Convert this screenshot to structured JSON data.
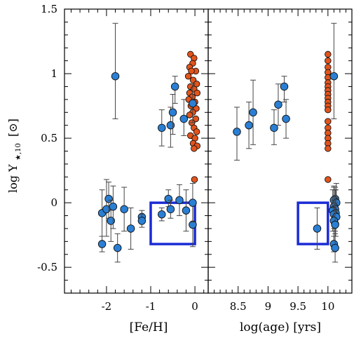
{
  "chart_data": {
    "type": "scatter",
    "ylabel": "log Υ",
    "ylabel_sub": "★,10",
    "ylabel_unit": "[⊙]",
    "ylim": [
      -0.7,
      1.5
    ],
    "yticks": [
      -0.5,
      0,
      0.5,
      1,
      1.5
    ],
    "ytick_labels": [
      "-0.5",
      "0",
      "0.5",
      "1",
      "1.5"
    ],
    "colors": {
      "blue": "#2a7fd4",
      "red": "#e2541c",
      "box": "#1a2bd6",
      "axis": "#000000"
    },
    "panels": [
      {
        "xlabel": "[Fe/H]",
        "xlim": [
          -2.95,
          0.3
        ],
        "xticks": [
          -2,
          -1,
          0
        ],
        "xtick_labels": [
          "-2",
          "-1",
          "0"
        ],
        "box": {
          "x": [
            -1.0,
            0.0
          ],
          "y": [
            -0.32,
            0.0
          ]
        },
        "series": [
          {
            "color": "blue",
            "points": [
              {
                "x": -1.8,
                "y": 0.98,
                "lo": 0.65,
                "hi": 1.39
              },
              {
                "x": -2.1,
                "y": -0.32,
                "lo": -0.38,
                "hi": -0.26
              },
              {
                "x": -2.1,
                "y": -0.08,
                "lo": -0.26,
                "hi": 0.1
              },
              {
                "x": -2.0,
                "y": -0.05,
                "lo": -0.26,
                "hi": 0.18
              },
              {
                "x": -1.95,
                "y": 0.03,
                "lo": -0.12,
                "hi": 0.16
              },
              {
                "x": -1.9,
                "y": -0.14,
                "lo": -0.3,
                "hi": 0.02
              },
              {
                "x": -1.85,
                "y": -0.03,
                "lo": -0.2,
                "hi": 0.13
              },
              {
                "x": -1.75,
                "y": -0.35,
                "lo": -0.46,
                "hi": -0.24
              },
              {
                "x": -1.6,
                "y": -0.05,
                "lo": -0.22,
                "hi": 0.12
              },
              {
                "x": -1.45,
                "y": -0.2,
                "lo": -0.36,
                "hi": -0.04
              },
              {
                "x": -1.2,
                "y": -0.11,
                "lo": -0.16,
                "hi": -0.06
              },
              {
                "x": -1.2,
                "y": -0.14,
                "lo": -0.19,
                "hi": -0.09
              },
              {
                "x": -0.75,
                "y": 0.58,
                "lo": 0.44,
                "hi": 0.72
              },
              {
                "x": -0.55,
                "y": 0.6,
                "lo": 0.43,
                "hi": 0.74
              },
              {
                "x": -0.5,
                "y": 0.7,
                "lo": 0.53,
                "hi": 0.84
              },
              {
                "x": -0.45,
                "y": 0.9,
                "lo": 0.77,
                "hi": 0.98
              },
              {
                "x": -0.25,
                "y": 0.65,
                "lo": 0.52,
                "hi": 0.8
              },
              {
                "x": -0.05,
                "y": 0.77,
                "lo": 0.62,
                "hi": 0.92
              },
              {
                "x": -0.75,
                "y": -0.09,
                "lo": -0.14,
                "hi": -0.04
              },
              {
                "x": -0.6,
                "y": 0.03,
                "lo": -0.03,
                "hi": 0.1
              },
              {
                "x": -0.55,
                "y": -0.05,
                "lo": -0.12,
                "hi": 0.02
              },
              {
                "x": -0.35,
                "y": 0.02,
                "lo": -0.1,
                "hi": 0.14
              },
              {
                "x": -0.2,
                "y": -0.06,
                "lo": -0.22,
                "hi": 0.1
              },
              {
                "x": -0.05,
                "y": -0.17,
                "lo": -0.34,
                "hi": 0.0
              },
              {
                "x": -0.05,
                "y": 0.0,
                "lo": -0.15,
                "hi": 0.15
              }
            ]
          },
          {
            "color": "red",
            "points": [
              {
                "x": -0.1,
                "y": 1.15
              },
              {
                "x": -0.02,
                "y": 1.12
              },
              {
                "x": -0.05,
                "y": 1.08
              },
              {
                "x": -0.12,
                "y": 1.05
              },
              {
                "x": 0.02,
                "y": 1.02
              },
              {
                "x": -0.08,
                "y": 1.02
              },
              {
                "x": -0.15,
                "y": 0.98
              },
              {
                "x": -0.04,
                "y": 0.95
              },
              {
                "x": 0.04,
                "y": 0.92
              },
              {
                "x": -0.1,
                "y": 0.9
              },
              {
                "x": -0.02,
                "y": 0.88
              },
              {
                "x": -0.12,
                "y": 0.85
              },
              {
                "x": 0.05,
                "y": 0.85
              },
              {
                "x": -0.06,
                "y": 0.82
              },
              {
                "x": -0.14,
                "y": 0.8
              },
              {
                "x": 0.0,
                "y": 0.78
              },
              {
                "x": -0.09,
                "y": 0.75
              },
              {
                "x": 0.03,
                "y": 0.73
              },
              {
                "x": -0.05,
                "y": 0.7
              },
              {
                "x": -0.12,
                "y": 0.68
              },
              {
                "x": 0.02,
                "y": 0.65
              },
              {
                "x": -0.07,
                "y": 0.62
              },
              {
                "x": -0.02,
                "y": 0.58
              },
              {
                "x": 0.04,
                "y": 0.55
              },
              {
                "x": -0.1,
                "y": 0.52
              },
              {
                "x": 0.0,
                "y": 0.5
              },
              {
                "x": -0.04,
                "y": 0.46
              },
              {
                "x": 0.05,
                "y": 0.44
              },
              {
                "x": -0.02,
                "y": 0.42
              },
              {
                "x": -0.01,
                "y": 0.18
              }
            ]
          }
        ]
      },
      {
        "xlabel": "log(age) [yrs]",
        "xlim": [
          8.0,
          10.4
        ],
        "xticks": [
          8.5,
          9,
          9.5,
          10
        ],
        "xtick_labels": [
          "8.5",
          "9",
          "9.5",
          "10"
        ],
        "box": {
          "x": [
            9.5,
            10.0
          ],
          "y": [
            -0.32,
            0.0
          ]
        },
        "series": [
          {
            "color": "blue",
            "points": [
              {
                "x": 8.48,
                "y": 0.55,
                "lo": 0.33,
                "hi": 0.74
              },
              {
                "x": 8.68,
                "y": 0.6,
                "lo": 0.42,
                "hi": 0.78
              },
              {
                "x": 8.75,
                "y": 0.7,
                "lo": 0.45,
                "hi": 0.95
              },
              {
                "x": 9.1,
                "y": 0.58,
                "lo": 0.45,
                "hi": 0.72
              },
              {
                "x": 9.17,
                "y": 0.76,
                "lo": 0.6,
                "hi": 0.92
              },
              {
                "x": 9.27,
                "y": 0.9,
                "lo": 0.78,
                "hi": 0.98
              },
              {
                "x": 9.3,
                "y": 0.65,
                "lo": 0.5,
                "hi": 0.8
              },
              {
                "x": 9.82,
                "y": -0.2,
                "lo": -0.36,
                "hi": -0.04
              },
              {
                "x": 10.1,
                "y": 0.98,
                "lo": 0.65,
                "hi": 1.39
              },
              {
                "x": 10.12,
                "y": 0.03,
                "lo": -0.05,
                "hi": 0.1
              },
              {
                "x": 10.1,
                "y": 0.02,
                "lo": -0.1,
                "hi": 0.12
              },
              {
                "x": 10.14,
                "y": 0.0,
                "lo": -0.15,
                "hi": 0.15
              },
              {
                "x": 10.1,
                "y": -0.03,
                "lo": -0.2,
                "hi": 0.13
              },
              {
                "x": 10.12,
                "y": -0.05,
                "lo": -0.22,
                "hi": 0.12
              },
              {
                "x": 10.08,
                "y": -0.06,
                "lo": -0.22,
                "hi": 0.1
              },
              {
                "x": 10.13,
                "y": -0.08,
                "lo": -0.26,
                "hi": 0.1
              },
              {
                "x": 10.1,
                "y": -0.09,
                "lo": -0.14,
                "hi": -0.04
              },
              {
                "x": 10.14,
                "y": -0.11,
                "lo": -0.16,
                "hi": -0.06
              },
              {
                "x": 10.1,
                "y": -0.14,
                "lo": -0.3,
                "hi": 0.02
              },
              {
                "x": 10.12,
                "y": -0.17,
                "lo": -0.34,
                "hi": 0.0
              },
              {
                "x": 10.1,
                "y": -0.32,
                "lo": -0.38,
                "hi": -0.26
              },
              {
                "x": 10.12,
                "y": -0.35,
                "lo": -0.46,
                "hi": -0.24
              }
            ]
          },
          {
            "color": "red",
            "points": [
              {
                "x": 10.0,
                "y": 1.15
              },
              {
                "x": 10.0,
                "y": 1.1
              },
              {
                "x": 10.0,
                "y": 1.05
              },
              {
                "x": 10.0,
                "y": 1.01
              },
              {
                "x": 10.0,
                "y": 0.97
              },
              {
                "x": 10.0,
                "y": 0.93
              },
              {
                "x": 10.0,
                "y": 0.9
              },
              {
                "x": 10.0,
                "y": 0.87
              },
              {
                "x": 10.0,
                "y": 0.84
              },
              {
                "x": 10.0,
                "y": 0.81
              },
              {
                "x": 10.0,
                "y": 0.78
              },
              {
                "x": 10.0,
                "y": 0.75
              },
              {
                "x": 10.0,
                "y": 0.72
              },
              {
                "x": 10.0,
                "y": 0.63
              },
              {
                "x": 10.0,
                "y": 0.58
              },
              {
                "x": 10.0,
                "y": 0.54
              },
              {
                "x": 10.0,
                "y": 0.5
              },
              {
                "x": 10.0,
                "y": 0.46
              },
              {
                "x": 10.0,
                "y": 0.42
              },
              {
                "x": 10.0,
                "y": 0.18
              }
            ]
          }
        ]
      }
    ]
  }
}
